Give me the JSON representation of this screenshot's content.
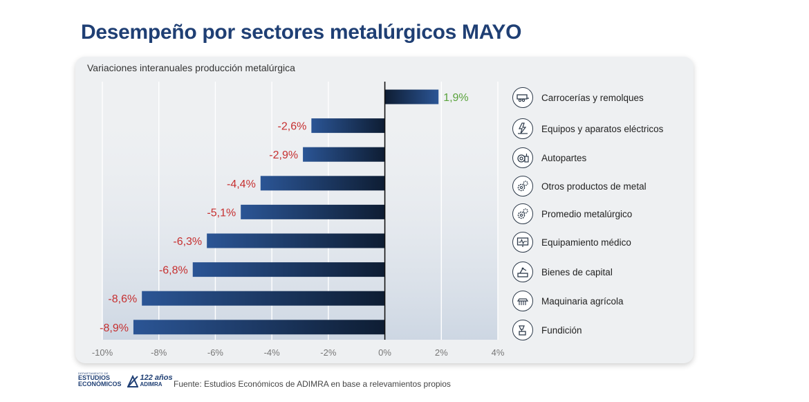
{
  "title": "Desempeño por sectores metalúrgicos MAYO",
  "chart_data": {
    "type": "bar",
    "orientation": "horizontal",
    "subtitle": "Variaciones interanuales producción metalúrgica",
    "categories": [
      "Carrocerías y remolques",
      "Equipos y aparatos eléctricos",
      "Autopartes",
      "Otros productos de metal",
      "Promedio metalúrgico",
      "Equipamiento médico",
      "Bienes de capital",
      "Maquinaria agrícola",
      "Fundición"
    ],
    "values": [
      1.9,
      -2.6,
      -2.9,
      -4.4,
      -5.1,
      -6.3,
      -6.8,
      -8.6,
      -8.9
    ],
    "value_labels": [
      "1,9%",
      "-2,6%",
      "-2,9%",
      "-4,4%",
      "-5,1%",
      "-6,3%",
      "-6,8%",
      "-8,6%",
      "-8,9%"
    ],
    "xlim": [
      -10,
      4
    ],
    "x_ticks": [
      -10,
      -8,
      -6,
      -4,
      -2,
      0,
      2,
      4
    ],
    "x_tick_labels": [
      "-10%",
      "-8%",
      "-6%",
      "-4%",
      "-2%",
      "0%",
      "2%",
      "4%"
    ],
    "grid": true,
    "legend_placement": "right",
    "colors": {
      "bar_dark": "#0e1d33",
      "bar_light": "#2b5595",
      "positive_label": "#5aa33c",
      "negative_label": "#c62f2f",
      "title": "#1f3f74"
    },
    "icons": [
      "trailer-icon",
      "electrical-equipment-icon",
      "auto-parts-icon",
      "metal-products-gears-icon",
      "metal-average-gears-icon",
      "medical-monitor-icon",
      "machinery-icon",
      "agricultural-machine-icon",
      "foundry-icon"
    ]
  },
  "footer": {
    "logo_estudios_small": "DEPARTAMENTO DE",
    "logo_estudios_line1": "ESTUDIOS",
    "logo_estudios_line2": "ECONÓMICOS",
    "logo_adimra_years": "122 años",
    "logo_adimra_name": "ADIMRA",
    "source": "Fuente: Estudios Económicos de ADIMRA en base a relevamientos propios"
  }
}
